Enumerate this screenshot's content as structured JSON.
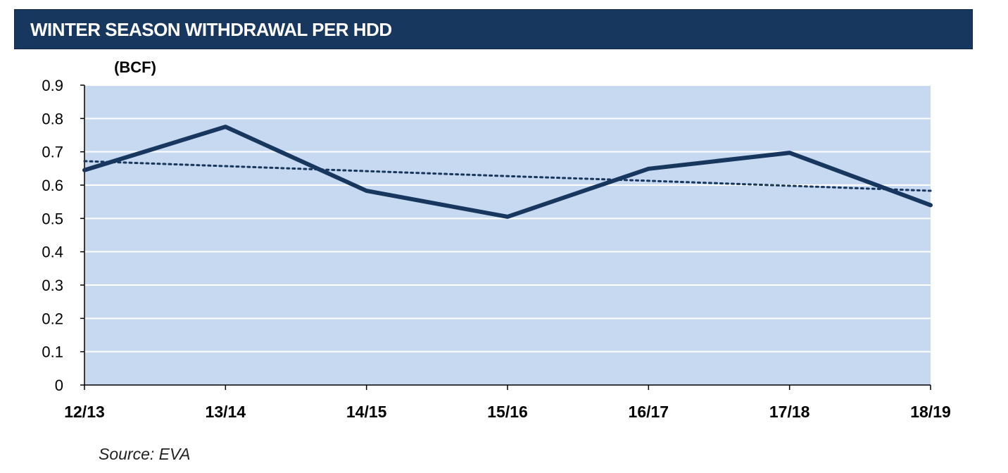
{
  "header": {
    "title": "WINTER SEASON WITHDRAWAL PER HDD"
  },
  "source": "Source: EVA",
  "chart_data": {
    "type": "line",
    "title": "WINTER SEASON WITHDRAWAL PER HDD",
    "ylabel": "(BCF)",
    "xlabel": "",
    "categories": [
      "12/13",
      "13/14",
      "14/15",
      "15/16",
      "16/17",
      "17/18",
      "18/19"
    ],
    "series": [
      {
        "values": [
          0.645,
          0.775,
          0.583,
          0.505,
          0.649,
          0.697,
          0.54
        ],
        "color": "#17375e",
        "style": "solid"
      },
      {
        "values": [
          0.672,
          0.657,
          0.642,
          0.627,
          0.613,
          0.598,
          0.583
        ],
        "color": "#17375e",
        "style": "dotted"
      }
    ],
    "ylim": [
      0,
      0.9
    ],
    "yticks": [
      "0",
      "0.1",
      "0.2",
      "0.3",
      "0.4",
      "0.5",
      "0.6",
      "0.7",
      "0.8",
      "0.9"
    ],
    "grid": true,
    "legend": "none",
    "plot_background": "#c6d9f1"
  }
}
